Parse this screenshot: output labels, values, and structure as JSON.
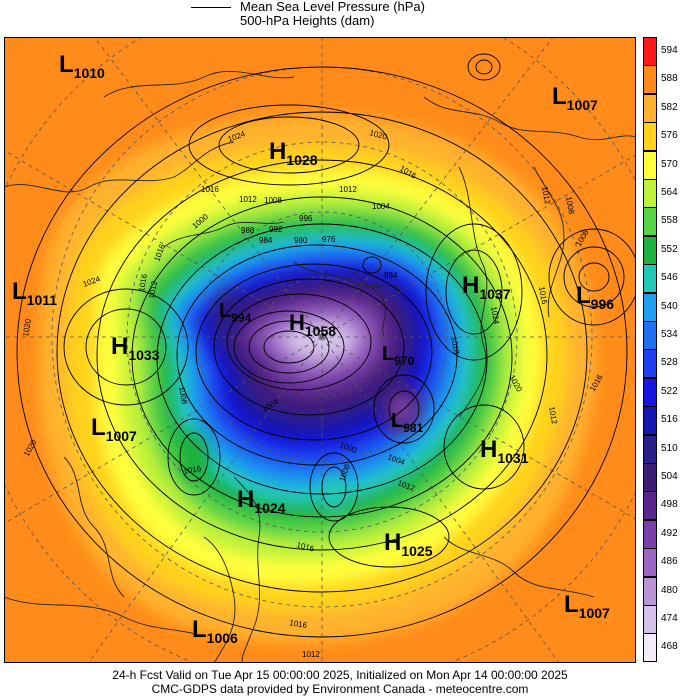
{
  "legend": {
    "line1": "Mean Sea Level Pressure (hPa)",
    "line2": "500-hPa Heights (dam)"
  },
  "colorbar": {
    "levels": [
      "594",
      "588",
      "582",
      "576",
      "570",
      "564",
      "558",
      "552",
      "546",
      "540",
      "534",
      "528",
      "522",
      "516",
      "510",
      "504",
      "498",
      "492",
      "486",
      "480",
      "474",
      "468"
    ],
    "colors": [
      "#ff1a1a",
      "#ff8c1a",
      "#ffb22e",
      "#ffd21e",
      "#ffff3c",
      "#bff23a",
      "#57d447",
      "#1fb240",
      "#22c9b9",
      "#1f9ff0",
      "#1f6ff0",
      "#1f3ff0",
      "#1616e0",
      "#1616b0",
      "#2a1e8c",
      "#3d1c78",
      "#5b2590",
      "#7a3fa8",
      "#9b66c4",
      "#b995d8",
      "#d6c2ea",
      "#f2ecf8"
    ]
  },
  "centers": [
    {
      "type": "L",
      "value": "1010"
    },
    {
      "type": "L",
      "value": "1007"
    },
    {
      "type": "H",
      "value": "1028"
    },
    {
      "type": "L",
      "value": "1011"
    },
    {
      "type": "H",
      "value": "1037"
    },
    {
      "type": "L",
      "value": "996"
    },
    {
      "type": "H",
      "value": "1033"
    },
    {
      "type": "L",
      "value": "994"
    },
    {
      "type": "H",
      "value": "1058"
    },
    {
      "type": "L",
      "value": "970"
    },
    {
      "type": "L",
      "value": "1007"
    },
    {
      "type": "L",
      "value": "981"
    },
    {
      "type": "H",
      "value": "1031"
    },
    {
      "type": "H",
      "value": "1024"
    },
    {
      "type": "H",
      "value": "1025"
    },
    {
      "type": "L",
      "value": "1007"
    },
    {
      "type": "L",
      "value": "1006"
    }
  ],
  "isobar_labels": [
    "1024",
    "1020",
    "1016",
    "1016",
    "1012",
    "1012",
    "1008",
    "1004",
    "1000",
    "996",
    "992",
    "988",
    "984",
    "980",
    "976",
    "1016",
    "1012",
    "1008",
    "1024",
    "1020",
    "1016",
    "1012",
    "1008",
    "1004",
    "1028",
    "1024",
    "1008",
    "1016",
    "1020",
    "1016",
    "1012",
    "1000",
    "1004",
    "1008",
    "1012",
    "1016",
    "1020",
    "1016",
    "1012",
    "1016",
    "984"
  ],
  "footer": {
    "line1": "24-h Fcst Valid on Tue Apr 15 00:00:00 2025, Initialized on Mon Apr 14 00:00:00 2025",
    "line2": "CMC-GDPS data provided by Environment Canada - meteocentre.com"
  }
}
